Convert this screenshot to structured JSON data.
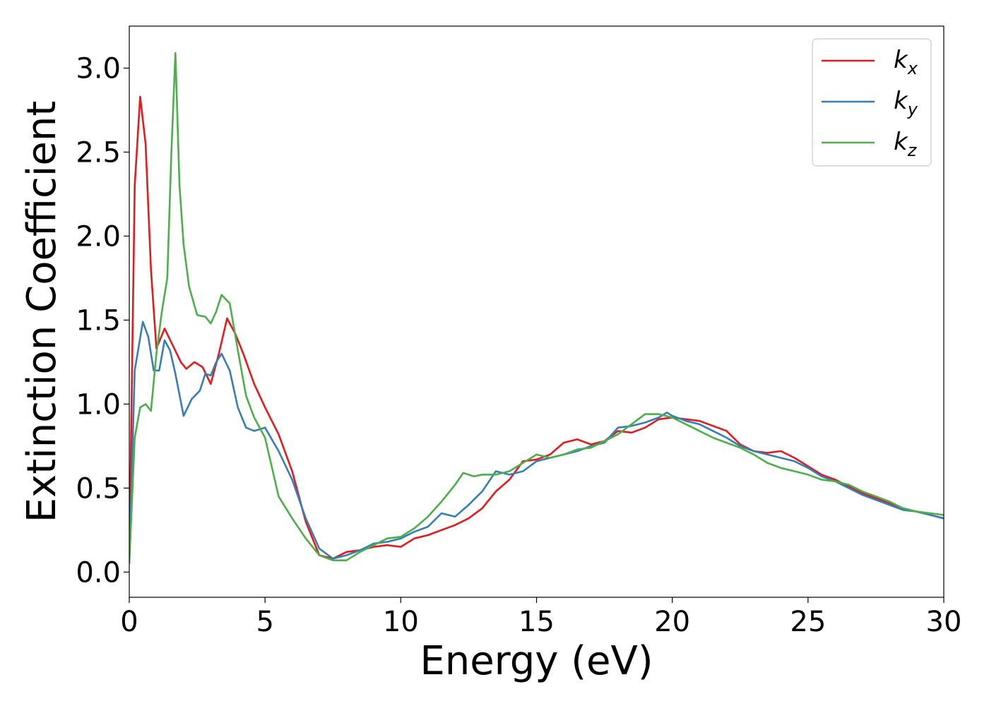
{
  "chart_data": {
    "type": "line",
    "xlabel": "Energy (eV)",
    "ylabel": "Extinction Coefficient",
    "xlim": [
      0,
      30
    ],
    "ylim": [
      -0.15,
      3.25
    ],
    "xticks": [
      0,
      5,
      10,
      15,
      20,
      25,
      30
    ],
    "xtick_labels": [
      "0",
      "5",
      "10",
      "15",
      "20",
      "25",
      "30"
    ],
    "yticks": [
      0.0,
      0.5,
      1.0,
      1.5,
      2.0,
      2.5,
      3.0
    ],
    "ytick_labels": [
      "0.0",
      "0.5",
      "1.0",
      "1.5",
      "2.0",
      "2.5",
      "3.0"
    ],
    "grid": false,
    "legend_position": "top-right",
    "series": [
      {
        "name": "k",
        "subscript": "x",
        "color": "#e41a1c",
        "x": [
          0,
          0.2,
          0.4,
          0.6,
          0.8,
          1.0,
          1.3,
          1.6,
          1.9,
          2.1,
          2.4,
          2.7,
          3.0,
          3.3,
          3.6,
          3.9,
          4.2,
          4.6,
          5.0,
          5.5,
          6.0,
          6.5,
          7.0,
          7.5,
          8.0,
          8.5,
          9.0,
          9.5,
          10.0,
          10.5,
          11.0,
          11.5,
          12.0,
          12.5,
          13.0,
          13.5,
          14.0,
          14.5,
          15.0,
          15.5,
          16.0,
          16.5,
          17.0,
          17.5,
          18.0,
          18.5,
          19.0,
          19.5,
          20.0,
          20.5,
          21.0,
          21.5,
          22.0,
          22.5,
          23.0,
          23.5,
          24.0,
          24.5,
          25.0,
          25.5,
          26.0,
          26.5,
          27.0,
          27.5,
          28.0,
          28.5,
          29.0,
          29.5,
          30.0
        ],
        "values": [
          0.05,
          2.3,
          2.83,
          2.55,
          1.8,
          1.33,
          1.45,
          1.35,
          1.25,
          1.21,
          1.25,
          1.22,
          1.12,
          1.3,
          1.51,
          1.42,
          1.3,
          1.12,
          0.98,
          0.82,
          0.6,
          0.3,
          0.1,
          0.08,
          0.12,
          0.13,
          0.15,
          0.16,
          0.15,
          0.2,
          0.22,
          0.25,
          0.28,
          0.32,
          0.38,
          0.48,
          0.55,
          0.66,
          0.67,
          0.7,
          0.77,
          0.79,
          0.76,
          0.78,
          0.84,
          0.83,
          0.86,
          0.91,
          0.92,
          0.91,
          0.9,
          0.87,
          0.84,
          0.76,
          0.72,
          0.71,
          0.72,
          0.68,
          0.63,
          0.58,
          0.55,
          0.51,
          0.47,
          0.44,
          0.41,
          0.38,
          0.36,
          0.34,
          0.32
        ]
      },
      {
        "name": "k",
        "subscript": "y",
        "color": "#377eb8",
        "x": [
          0,
          0.2,
          0.5,
          0.7,
          0.9,
          1.1,
          1.3,
          1.5,
          1.7,
          2.0,
          2.3,
          2.6,
          2.8,
          3.0,
          3.2,
          3.4,
          3.7,
          4.0,
          4.3,
          4.6,
          5.0,
          5.5,
          6.0,
          6.5,
          7.0,
          7.5,
          8.0,
          8.5,
          9.0,
          9.5,
          10.0,
          10.5,
          11.0,
          11.5,
          12.0,
          12.5,
          13.0,
          13.5,
          14.0,
          14.5,
          15.0,
          15.5,
          16.0,
          16.5,
          17.0,
          17.5,
          18.0,
          18.5,
          19.0,
          19.5,
          19.8,
          20.0,
          20.5,
          21.0,
          21.5,
          22.0,
          22.5,
          23.0,
          23.5,
          24.0,
          24.5,
          25.0,
          25.5,
          26.0,
          26.5,
          27.0,
          27.5,
          28.0,
          28.5,
          29.0,
          29.5,
          30.0
        ],
        "values": [
          0.05,
          1.2,
          1.49,
          1.4,
          1.2,
          1.2,
          1.38,
          1.32,
          1.18,
          0.93,
          1.03,
          1.08,
          1.18,
          1.17,
          1.25,
          1.3,
          1.2,
          0.98,
          0.86,
          0.84,
          0.86,
          0.72,
          0.55,
          0.32,
          0.14,
          0.08,
          0.1,
          0.13,
          0.17,
          0.18,
          0.2,
          0.24,
          0.27,
          0.35,
          0.33,
          0.4,
          0.48,
          0.6,
          0.58,
          0.6,
          0.66,
          0.68,
          0.7,
          0.72,
          0.75,
          0.77,
          0.86,
          0.87,
          0.89,
          0.92,
          0.95,
          0.93,
          0.9,
          0.88,
          0.84,
          0.8,
          0.75,
          0.72,
          0.7,
          0.68,
          0.66,
          0.62,
          0.57,
          0.54,
          0.5,
          0.46,
          0.43,
          0.4,
          0.37,
          0.36,
          0.34,
          0.32
        ]
      },
      {
        "name": "k",
        "subscript": "z",
        "color": "#4daf4a",
        "x": [
          0,
          0.2,
          0.4,
          0.6,
          0.8,
          1.0,
          1.2,
          1.4,
          1.55,
          1.7,
          1.85,
          2.0,
          2.2,
          2.5,
          2.8,
          3.0,
          3.2,
          3.4,
          3.7,
          4.0,
          4.3,
          4.6,
          5.0,
          5.5,
          6.0,
          6.5,
          7.0,
          7.5,
          8.0,
          8.5,
          9.0,
          9.5,
          10.0,
          10.5,
          11.0,
          11.5,
          12.0,
          12.3,
          12.7,
          13.0,
          13.5,
          14.0,
          14.5,
          15.0,
          15.5,
          16.0,
          16.5,
          17.0,
          17.5,
          18.0,
          18.5,
          19.0,
          19.5,
          20.0,
          20.5,
          21.0,
          21.5,
          22.0,
          22.5,
          23.0,
          23.5,
          24.0,
          24.5,
          25.0,
          25.5,
          26.0,
          26.5,
          27.0,
          27.5,
          28.0,
          28.5,
          29.0,
          29.5,
          30.0
        ],
        "values": [
          0.05,
          0.8,
          0.98,
          1.0,
          0.96,
          1.3,
          1.55,
          1.75,
          2.5,
          3.09,
          2.3,
          1.95,
          1.7,
          1.53,
          1.52,
          1.48,
          1.55,
          1.65,
          1.6,
          1.32,
          1.05,
          0.92,
          0.8,
          0.45,
          0.32,
          0.2,
          0.1,
          0.07,
          0.07,
          0.12,
          0.16,
          0.2,
          0.21,
          0.26,
          0.33,
          0.42,
          0.52,
          0.59,
          0.57,
          0.58,
          0.58,
          0.6,
          0.65,
          0.7,
          0.68,
          0.7,
          0.73,
          0.74,
          0.78,
          0.82,
          0.88,
          0.94,
          0.94,
          0.92,
          0.88,
          0.84,
          0.8,
          0.77,
          0.74,
          0.7,
          0.65,
          0.62,
          0.6,
          0.58,
          0.55,
          0.54,
          0.52,
          0.48,
          0.45,
          0.42,
          0.38,
          0.36,
          0.35,
          0.34
        ]
      }
    ]
  }
}
